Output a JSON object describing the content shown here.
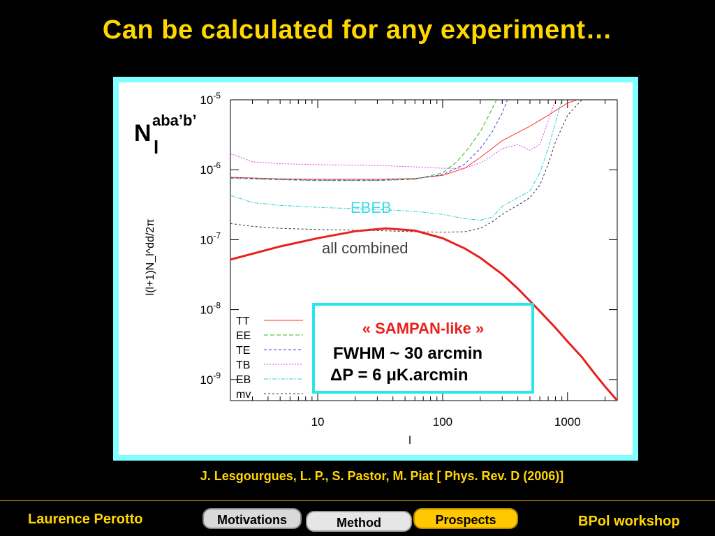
{
  "slide": {
    "title": "Can be calculated for any experiment…",
    "reference": "J. Lesgourgues, L. P., S. Pastor, M. Piat [ Phys. Rev. D (2006)]",
    "footer_left": "Laurence Perotto",
    "footer_right": "BPol workshop",
    "nav": {
      "motivations": "Motivations",
      "method": "Method",
      "prospects": "Prospects"
    }
  },
  "overlay": {
    "n_main": "N",
    "n_sub": "l",
    "n_sup": "aba’b’",
    "ebeb_label": "EBEB",
    "combined_label": "all combined",
    "callout_title": "« SAMPAN-like »",
    "callout_line1": "FWHM ~ 30 arcmin",
    "callout_line2": "ΔP = 6 μK.arcmin"
  },
  "colors": {
    "title": "#ffd700",
    "frame": "#7fffff",
    "callout_border": "#28e6ea",
    "callout_title": "#e8201e",
    "signal": "#e8201e"
  },
  "chart_data": {
    "type": "line",
    "xscale": "log",
    "yscale": "log",
    "xlim": [
      2,
      2500
    ],
    "ylim": [
      5e-10,
      1e-05
    ],
    "xlabel": "l",
    "ylabel": "l(l+1)N_l^dd/2π",
    "xticks": [
      {
        "v": 10,
        "label": "10"
      },
      {
        "v": 100,
        "label": "100"
      },
      {
        "v": 1000,
        "label": "1000"
      }
    ],
    "yticks": [
      {
        "v": 1e-09,
        "base": "10",
        "exp": "-9"
      },
      {
        "v": 1e-08,
        "base": "10",
        "exp": "-8"
      },
      {
        "v": 1e-07,
        "base": "10",
        "exp": "-7"
      },
      {
        "v": 1e-06,
        "base": "10",
        "exp": "-6"
      },
      {
        "v": 1e-05,
        "base": "10",
        "exp": "-5"
      }
    ],
    "legend_position": "bottom-left",
    "series": [
      {
        "name": "TT",
        "color": "#ff3030",
        "dash": "",
        "width": 1,
        "x": [
          2,
          5,
          10,
          30,
          60,
          100,
          150,
          200,
          300,
          400,
          500,
          700,
          1000,
          1200
        ],
        "y": [
          7.8e-07,
          7.4e-07,
          7.3e-07,
          7.3e-07,
          7.5e-07,
          8.3e-07,
          1.05e-06,
          1.5e-06,
          2.6e-06,
          3.4e-06,
          4.2e-06,
          6e-06,
          9e-06,
          1e-05
        ]
      },
      {
        "name": "EE",
        "color": "#22c022",
        "dash": "6,3",
        "width": 1,
        "x": [
          2,
          5,
          10,
          30,
          60,
          100,
          130,
          160,
          200,
          240,
          270
        ],
        "y": [
          7.5e-07,
          7.2e-07,
          7e-07,
          7e-07,
          7.3e-07,
          9e-07,
          1.3e-06,
          2e-06,
          3.5e-06,
          6.5e-06,
          1e-05
        ]
      },
      {
        "name": "TE",
        "color": "#4040e0",
        "dash": "4,3",
        "width": 1,
        "x": [
          2,
          5,
          10,
          30,
          60,
          100,
          150,
          200,
          250,
          300,
          330
        ],
        "y": [
          7.7e-07,
          7.3e-07,
          7.1e-07,
          7.1e-07,
          7.4e-07,
          8.5e-07,
          1.2e-06,
          2e-06,
          3.5e-06,
          6.5e-06,
          1e-05
        ]
      },
      {
        "name": "TB",
        "color": "#e040e0",
        "dash": "2,2",
        "width": 1,
        "x": [
          2,
          3,
          5,
          10,
          30,
          60,
          100,
          150,
          200,
          250,
          300,
          400,
          500,
          600,
          700,
          800
        ],
        "y": [
          1.7e-06,
          1.3e-06,
          1.22e-06,
          1.18e-06,
          1.15e-06,
          1.1e-06,
          1.05e-06,
          1.05e-06,
          1.25e-06,
          1.6e-06,
          2e-06,
          2.3e-06,
          1.9e-06,
          2.3e-06,
          5e-06,
          1e-05
        ]
      },
      {
        "name": "EB",
        "color": "#30d0d0",
        "dash": "6,2,2,2",
        "width": 1,
        "x": [
          2,
          3,
          5,
          10,
          30,
          60,
          100,
          150,
          200,
          250,
          300,
          400,
          500,
          600,
          700,
          900
        ],
        "y": [
          4.3e-07,
          3.4e-07,
          3.1e-07,
          2.9e-07,
          2.7e-07,
          2.55e-07,
          2.3e-07,
          2e-07,
          1.9e-07,
          2.1e-07,
          3e-07,
          4e-07,
          5e-07,
          9e-07,
          2e-06,
          1e-05
        ]
      },
      {
        "name": "mv",
        "color": "#303030",
        "dash": "3,3",
        "width": 1,
        "x": [
          2,
          3,
          5,
          10,
          30,
          60,
          100,
          150,
          200,
          250,
          300,
          400,
          500,
          600,
          700,
          800,
          1000,
          1300
        ],
        "y": [
          1.7e-07,
          1.55e-07,
          1.45e-07,
          1.4e-07,
          1.35e-07,
          1.3e-07,
          1.28e-07,
          1.3e-07,
          1.45e-07,
          1.8e-07,
          2.3e-07,
          3.1e-07,
          4e-07,
          6e-07,
          1.2e-06,
          2.5e-06,
          6e-06,
          1e-05
        ]
      },
      {
        "name": "",
        "color": "#e8201e",
        "dash": "",
        "width": 3,
        "x": [
          2,
          5,
          10,
          20,
          35,
          60,
          100,
          150,
          200,
          300,
          400,
          600,
          800,
          1000,
          1300,
          1600,
          2000,
          2500
        ],
        "y": [
          5.2e-08,
          8e-08,
          1.05e-07,
          1.32e-07,
          1.45e-07,
          1.35e-07,
          1.05e-07,
          7.5e-08,
          5.5e-08,
          3.2e-08,
          2e-08,
          9.5e-09,
          5.5e-09,
          3.5e-09,
          2.1e-09,
          1.3e-09,
          7.9e-10,
          5e-10
        ]
      }
    ]
  }
}
